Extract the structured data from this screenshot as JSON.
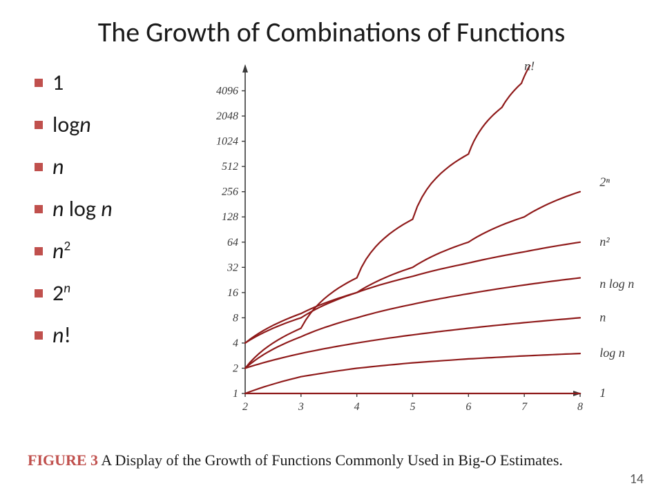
{
  "title": "The Growth of Combinations of  Functions",
  "bullets": [
    {
      "html": "<span class='upright'>1</span>"
    },
    {
      "html": " <span class='upright'>log</span><span>n</span>"
    },
    {
      "html": " n"
    },
    {
      "html": " n <span class='upright'>log</span> n"
    },
    {
      "html": " n<sup>2</sup>"
    },
    {
      "html": "<span class='upright'>2</span><sup class='expn'>n</sup>"
    },
    {
      "html": " n<span class='upright'>!</span>"
    }
  ],
  "caption": {
    "lead": "FIGURE 3",
    "rest": "  A Display of the Growth of Functions Commonly Used in Big-",
    "italic": "O",
    "tail": " Estimates."
  },
  "page_number": "14",
  "chart": {
    "type": "line",
    "background_color": "#ffffff",
    "axis_color": "#3a3a3a",
    "tick_font_size": 16,
    "curve_label_font_size": 18,
    "line_color": "#8f1a1a",
    "line_width": 2.2,
    "x": {
      "min": 2,
      "max": 8,
      "ticks": [
        2,
        3,
        4,
        5,
        6,
        7,
        8
      ]
    },
    "y": {
      "type": "log2",
      "min": 1,
      "max": 8192,
      "ticks": [
        1,
        2,
        4,
        8,
        16,
        32,
        64,
        128,
        256,
        512,
        1024,
        2048,
        4096
      ]
    },
    "curves": [
      {
        "label": "n!",
        "label_x": 7.0,
        "label_y": 8000,
        "points": [
          [
            2,
            2
          ],
          [
            3,
            6
          ],
          [
            4,
            24
          ],
          [
            5,
            120
          ],
          [
            6,
            720
          ],
          [
            6.6,
            2600
          ],
          [
            6.95,
            5040
          ],
          [
            7.1,
            8192
          ]
        ]
      },
      {
        "label": "2ⁿ",
        "label_x": 8.35,
        "label_y": 330,
        "points": [
          [
            2,
            4
          ],
          [
            3,
            8
          ],
          [
            4,
            16
          ],
          [
            5,
            32
          ],
          [
            6,
            64
          ],
          [
            7,
            128
          ],
          [
            8,
            256
          ]
        ]
      },
      {
        "label": "n²",
        "label_x": 8.35,
        "label_y": 64,
        "points": [
          [
            2,
            4
          ],
          [
            3,
            9
          ],
          [
            4,
            16
          ],
          [
            5,
            25
          ],
          [
            6,
            36
          ],
          [
            7,
            49
          ],
          [
            8,
            64
          ]
        ]
      },
      {
        "label": "n log n",
        "label_x": 8.35,
        "label_y": 20,
        "points": [
          [
            2,
            2
          ],
          [
            3,
            4.75
          ],
          [
            4,
            8
          ],
          [
            5,
            11.6
          ],
          [
            6,
            15.5
          ],
          [
            7,
            19.7
          ],
          [
            8,
            24
          ]
        ]
      },
      {
        "label": "n",
        "label_x": 8.35,
        "label_y": 8,
        "points": [
          [
            2,
            2
          ],
          [
            3,
            3
          ],
          [
            4,
            4
          ],
          [
            5,
            5
          ],
          [
            6,
            6
          ],
          [
            7,
            7
          ],
          [
            8,
            8
          ]
        ]
      },
      {
        "label": "log n",
        "label_x": 8.35,
        "label_y": 3,
        "points": [
          [
            2,
            1
          ],
          [
            3,
            1.585
          ],
          [
            4,
            2
          ],
          [
            5,
            2.322
          ],
          [
            6,
            2.585
          ],
          [
            7,
            2.807
          ],
          [
            8,
            3
          ]
        ]
      },
      {
        "label": "1",
        "label_x": 8.35,
        "label_y": 1,
        "points": [
          [
            2,
            1
          ],
          [
            8,
            1
          ]
        ]
      }
    ]
  }
}
